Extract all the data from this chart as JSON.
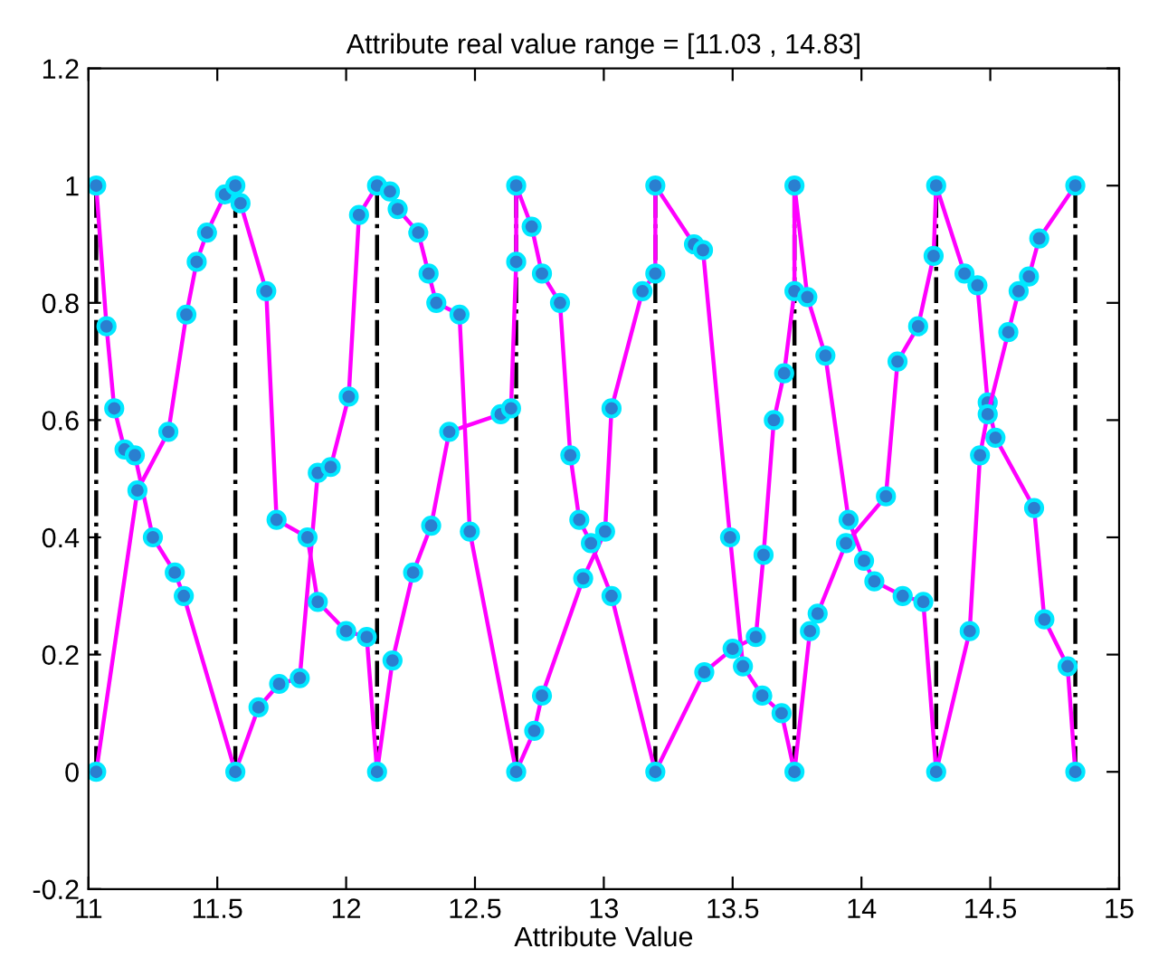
{
  "chart_data": {
    "type": "line",
    "title": "Attribute real value range = [11.03 , 14.83]",
    "xlabel": "Attribute Value",
    "xlim": [
      11,
      15
    ],
    "xticks": [
      11,
      11.5,
      12,
      12.5,
      13,
      13.5,
      14,
      14.5,
      15
    ],
    "ylim": [
      -0.2,
      1.2
    ],
    "yticks": [
      -0.2,
      0,
      0.2,
      0.4,
      0.6,
      0.8,
      1,
      1.2
    ],
    "grid": false,
    "legend": false,
    "marker": "circle",
    "line_style": "solid",
    "series": [
      {
        "color": "#ff00ff",
        "x": [
          11.03,
          11.07,
          11.1,
          11.14,
          11.18,
          11.25,
          11.335,
          11.37,
          11.57,
          11.66,
          11.74,
          11.82,
          11.89,
          11.94,
          12.01,
          12.05,
          12.12,
          12.17,
          12.2,
          12.28,
          12.32,
          12.35,
          12.44,
          12.48,
          12.66,
          12.73,
          12.76,
          12.92,
          13.005,
          13.03,
          13.15,
          13.2,
          13.2,
          13.35,
          13.385,
          13.49,
          13.54,
          13.615,
          13.69,
          13.74,
          13.8,
          13.83,
          13.94,
          14.095,
          14.14,
          14.22,
          14.28,
          14.29,
          14.4,
          14.45,
          14.49,
          14.52,
          14.67,
          14.71,
          14.8,
          14.83
        ],
        "values": [
          1,
          0.76,
          0.62,
          0.55,
          0.54,
          0.4,
          0.34,
          0.3,
          0,
          0.11,
          0.15,
          0.16,
          0.51,
          0.52,
          0.64,
          0.95,
          1,
          0.99,
          0.96,
          0.92,
          0.85,
          0.8,
          0.78,
          0.41,
          0,
          0.07,
          0.13,
          0.33,
          0.41,
          0.62,
          0.82,
          0.85,
          1,
          0.9,
          0.89,
          0.4,
          0.18,
          0.13,
          0.1,
          0,
          0.24,
          0.27,
          0.39,
          0.47,
          0.7,
          0.76,
          0.88,
          1,
          0.85,
          0.83,
          0.63,
          0.57,
          0.45,
          0.26,
          0.18,
          0
        ]
      },
      {
        "color": "#ff00ff",
        "x": [
          11.03,
          11.19,
          11.31,
          11.38,
          11.42,
          11.46,
          11.53,
          11.57,
          11.59,
          11.69,
          11.73,
          11.85,
          11.89,
          12.0,
          12.08,
          12.12,
          12.18,
          12.26,
          12.33,
          12.4,
          12.6,
          12.64,
          12.66,
          12.66,
          12.72,
          12.76,
          12.83,
          12.87,
          12.905,
          12.95,
          13.03,
          13.2,
          13.39,
          13.5,
          13.59,
          13.62,
          13.66,
          13.7,
          13.74,
          13.74,
          13.79,
          13.86,
          13.95,
          14.01,
          14.05,
          14.16,
          14.24,
          14.29,
          14.42,
          14.46,
          14.49,
          14.57,
          14.61,
          14.65,
          14.69,
          14.83
        ],
        "values": [
          0,
          0.48,
          0.58,
          0.78,
          0.87,
          0.92,
          0.985,
          1,
          0.97,
          0.82,
          0.43,
          0.4,
          0.29,
          0.24,
          0.23,
          0,
          0.19,
          0.34,
          0.42,
          0.58,
          0.61,
          0.62,
          0.87,
          1,
          0.93,
          0.85,
          0.8,
          0.54,
          0.43,
          0.39,
          0.3,
          0,
          0.17,
          0.21,
          0.23,
          0.37,
          0.6,
          0.68,
          0.82,
          1,
          0.81,
          0.71,
          0.43,
          0.36,
          0.325,
          0.3,
          0.29,
          0,
          0.24,
          0.54,
          0.61,
          0.75,
          0.82,
          0.845,
          0.91,
          1
        ]
      }
    ],
    "ref_lines": [
      {
        "axis": "x",
        "value": 11.03,
        "color": "#000000",
        "line_style": "dashdot"
      },
      {
        "axis": "x",
        "value": 11.57,
        "color": "#000000",
        "line_style": "dashdot"
      },
      {
        "axis": "x",
        "value": 12.12,
        "color": "#000000",
        "line_style": "dashdot"
      },
      {
        "axis": "x",
        "value": 12.66,
        "color": "#000000",
        "line_style": "dashdot"
      },
      {
        "axis": "x",
        "value": 13.2,
        "color": "#000000",
        "line_style": "dashdot"
      },
      {
        "axis": "x",
        "value": 13.74,
        "color": "#000000",
        "line_style": "dashdot"
      },
      {
        "axis": "x",
        "value": 14.29,
        "color": "#000000",
        "line_style": "dashdot"
      },
      {
        "axis": "x",
        "value": 14.83,
        "color": "#000000",
        "line_style": "dashdot"
      }
    ]
  }
}
